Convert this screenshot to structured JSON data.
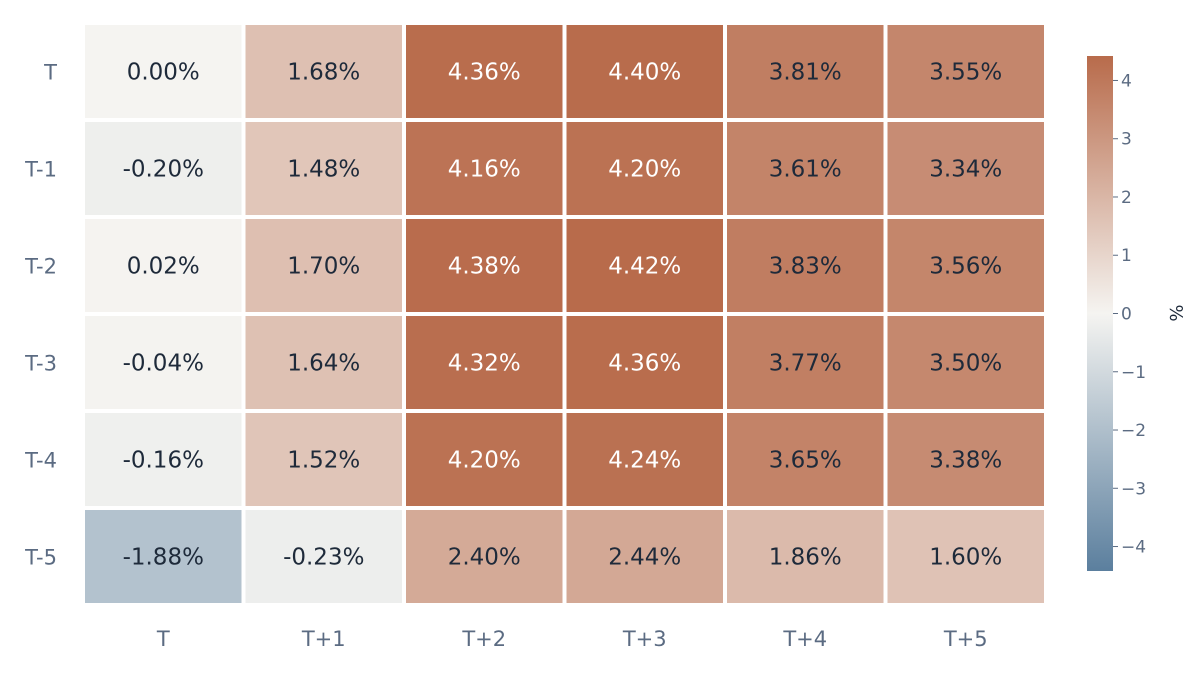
{
  "chart_data": {
    "type": "heatmap",
    "title": "",
    "xlabel": "",
    "ylabel": "",
    "x_categories": [
      "T",
      "T+1",
      "T+2",
      "T+3",
      "T+4",
      "T+5"
    ],
    "y_categories": [
      "T",
      "T-1",
      "T-2",
      "T-3",
      "T-4",
      "T-5"
    ],
    "values": [
      [
        0.0,
        1.68,
        4.36,
        4.4,
        3.81,
        3.55
      ],
      [
        -0.2,
        1.48,
        4.16,
        4.2,
        3.61,
        3.34
      ],
      [
        0.02,
        1.7,
        4.38,
        4.42,
        3.83,
        3.56
      ],
      [
        -0.04,
        1.64,
        4.32,
        4.36,
        3.77,
        3.5
      ],
      [
        -0.16,
        1.52,
        4.2,
        4.24,
        3.65,
        3.38
      ],
      [
        -1.88,
        -0.23,
        2.4,
        2.44,
        1.86,
        1.6
      ]
    ],
    "cell_labels": [
      [
        "0.00%",
        "1.68%",
        "4.36%",
        "4.40%",
        "3.81%",
        "3.55%"
      ],
      [
        "-0.20%",
        "1.48%",
        "4.16%",
        "4.20%",
        "3.61%",
        "3.34%"
      ],
      [
        "0.02%",
        "1.70%",
        "4.38%",
        "4.42%",
        "3.83%",
        "3.56%"
      ],
      [
        "-0.04%",
        "1.64%",
        "4.32%",
        "4.36%",
        "3.77%",
        "3.50%"
      ],
      [
        "-0.16%",
        "1.52%",
        "4.20%",
        "4.24%",
        "3.65%",
        "3.38%"
      ],
      [
        "-1.88%",
        "-0.23%",
        "2.40%",
        "2.44%",
        "1.86%",
        "1.60%"
      ]
    ],
    "colorbar": {
      "title": "%",
      "range": [
        -4.42,
        4.42
      ],
      "ticks": [
        4,
        3,
        2,
        1,
        0,
        -1,
        -2,
        -3,
        -4
      ],
      "tick_labels": [
        "4",
        "3",
        "2",
        "1",
        "0",
        "−1",
        "−2",
        "−3",
        "−4"
      ],
      "placement": "right",
      "colors": {
        "low": "#5b7f9e",
        "mid": "#f5f4f1",
        "high": "#b86b4b"
      }
    },
    "label_colors": {
      "dark": "#1e2a3a",
      "light": "#ffffff"
    },
    "grid": false
  }
}
